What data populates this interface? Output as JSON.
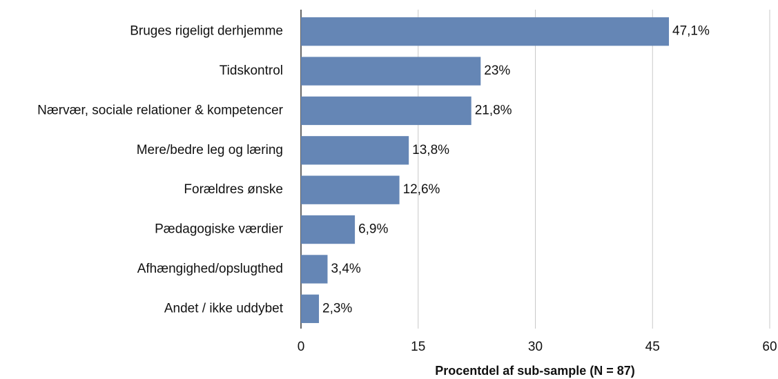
{
  "chart_data": {
    "type": "bar",
    "orientation": "horizontal",
    "xlabel": "Procentdel af sub-sample  (N = 87)",
    "categories": [
      "Bruges rigeligt derhjemme",
      "Tidskontrol",
      "Nærvær, sociale relationer & kompetencer",
      "Mere/bedre leg og læring",
      "Forældres ønske",
      "Pædagogiske værdier",
      "Afhængighed/opslugthed",
      "Andet / ikke uddybet"
    ],
    "values": [
      47.1,
      23,
      21.8,
      13.8,
      12.6,
      6.9,
      3.4,
      2.3
    ],
    "value_labels": [
      "47,1%",
      "23%",
      "21,8%",
      "13,8%",
      "12,6%",
      "6,9%",
      "3,4%",
      "2,3%"
    ],
    "color": "#6586b5",
    "xlim": [
      0,
      60
    ],
    "xticks": [
      0,
      15,
      30,
      45,
      60
    ],
    "grid": true
  }
}
